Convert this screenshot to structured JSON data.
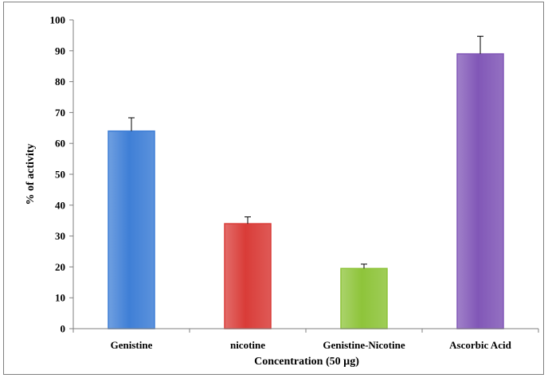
{
  "chart_data": {
    "type": "bar",
    "categories": [
      "Genistine",
      "nicotine",
      "Genistine-Nicotine",
      "Ascorbic Acid"
    ],
    "values": [
      64,
      34,
      19.5,
      89
    ],
    "error_bars": [
      4.3,
      2.2,
      1.4,
      5.7
    ],
    "colors": [
      "#3f7fd6",
      "#d93c38",
      "#8ec43a",
      "#8157b7"
    ],
    "title": "",
    "xlabel": "Concentration (50 µg)",
    "ylabel": "% of activity",
    "ylim": [
      0,
      100
    ],
    "yticks": [
      "0",
      "10",
      "20",
      "30",
      "40",
      "50",
      "60",
      "70",
      "80",
      "90",
      "100"
    ],
    "grid": false,
    "legend": "none"
  }
}
